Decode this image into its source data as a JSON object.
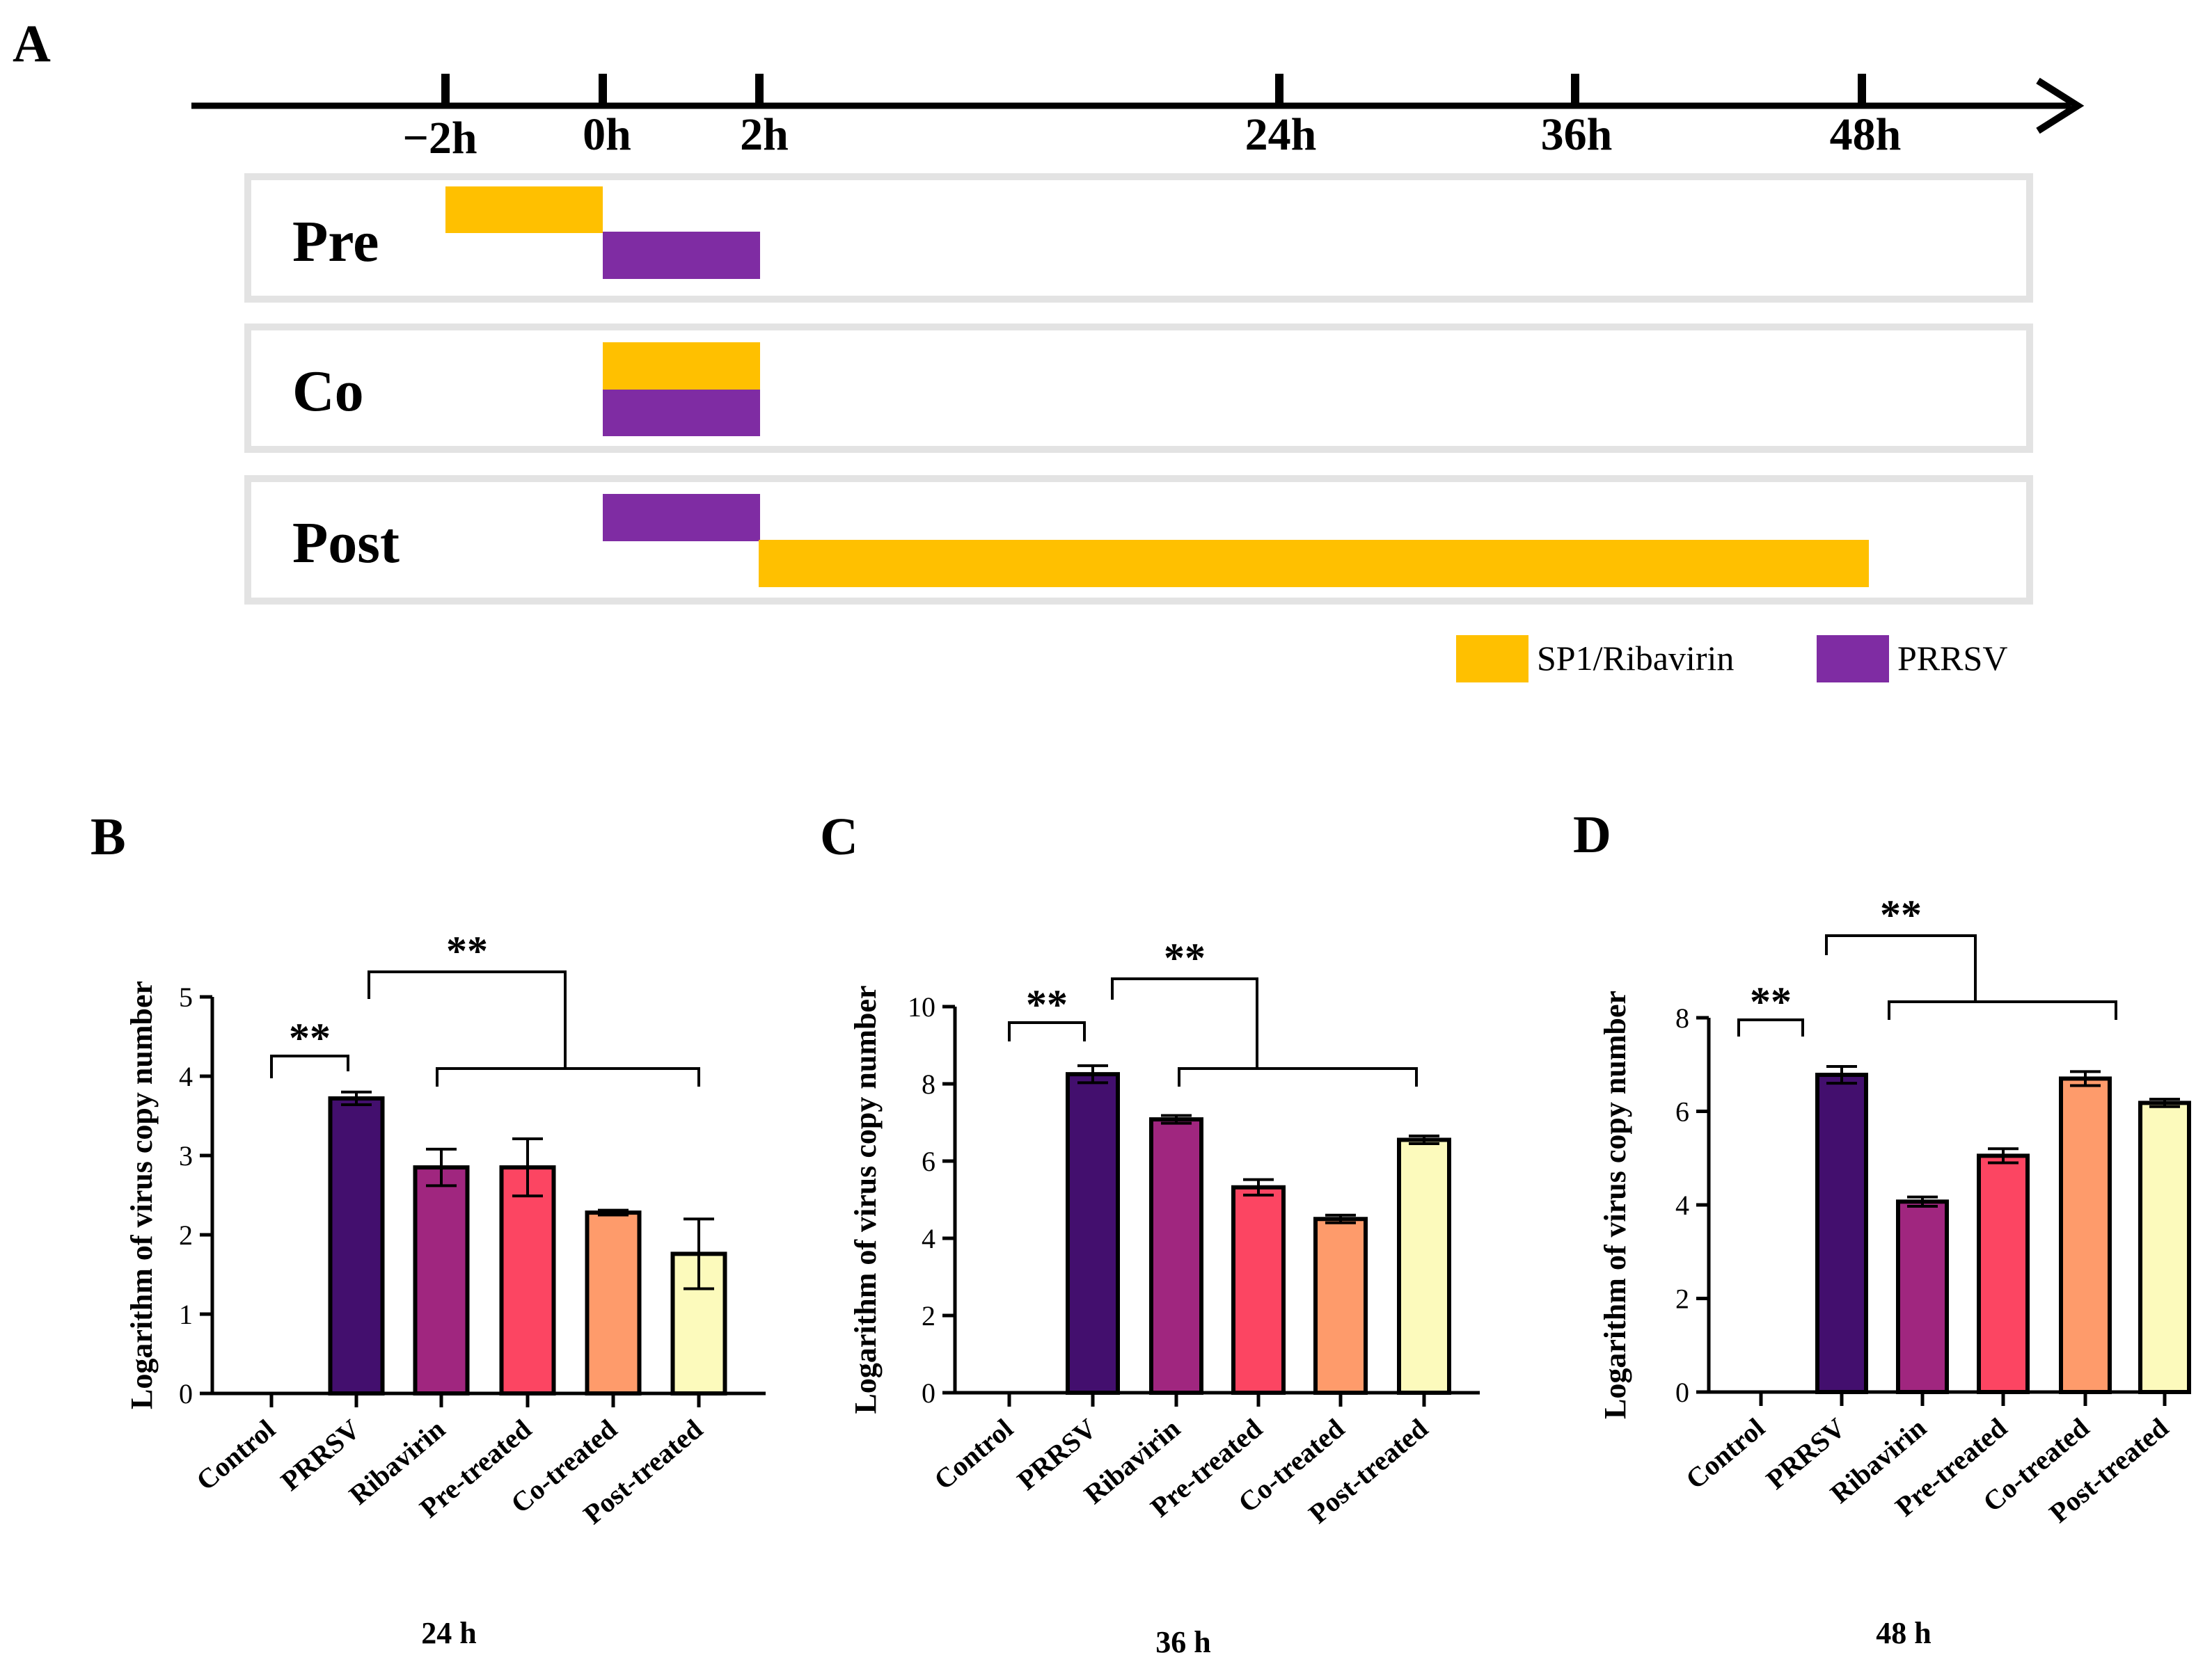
{
  "panel_a": {
    "letter": "A",
    "timeline_ticks": [
      "−2h",
      "0h",
      "2h",
      "24h",
      "36h",
      "48h"
    ],
    "rows": [
      {
        "label": "Pre",
        "bars": [
          {
            "agent": "SP1/Ribavirin",
            "from": "−2h",
            "to": "0h"
          },
          {
            "agent": "PRRSV",
            "from": "0h",
            "to": "2h"
          }
        ]
      },
      {
        "label": "Co",
        "bars": [
          {
            "agent": "SP1/Ribavirin",
            "from": "0h",
            "to": "2h"
          },
          {
            "agent": "PRRSV",
            "from": "0h",
            "to": "2h"
          }
        ]
      },
      {
        "label": "Post",
        "bars": [
          {
            "agent": "PRRSV",
            "from": "0h",
            "to": "2h"
          },
          {
            "agent": "SP1/Ribavirin",
            "from": "2h",
            "to": "48h"
          }
        ]
      }
    ],
    "legend": [
      {
        "label": "SP1/Ribavirin",
        "color": "#ffc000"
      },
      {
        "label": "PRRSV",
        "color": "#7f2ca3"
      }
    ]
  },
  "chart_data": [
    {
      "type": "bar",
      "letter": "B",
      "title": "24 h",
      "ylabel": "Logarithm of virus copy number",
      "categories": [
        "Control",
        "PRRSV",
        "Ribavirin",
        "Pre-treated",
        "Co-treated",
        "Post-treated"
      ],
      "values": [
        0,
        3.72,
        2.85,
        2.85,
        2.28,
        1.76
      ],
      "errors": [
        0,
        0.08,
        0.23,
        0.36,
        0.03,
        0.44
      ],
      "ylim": [
        0,
        5
      ],
      "yticks": [
        "0",
        "1",
        "2",
        "3",
        "4",
        "5"
      ],
      "significance": [
        "**",
        "**"
      ],
      "bar_colors": [
        "#ffffff",
        "#430f6e",
        "#a0267f",
        "#fc4562",
        "#fe9b6b",
        "#fcfabc"
      ]
    },
    {
      "type": "bar",
      "letter": "C",
      "title": "36 h",
      "ylabel": "Logarithm of virus copy number",
      "categories": [
        "Control",
        "PRRSV",
        "Ribavirin",
        "Pre-treated",
        "Co-treated",
        "Post-treated"
      ],
      "values": [
        0,
        8.25,
        7.08,
        5.32,
        4.5,
        6.55
      ],
      "errors": [
        0,
        0.22,
        0.1,
        0.2,
        0.1,
        0.1
      ],
      "ylim": [
        0,
        10
      ],
      "yticks": [
        "0",
        "2",
        "4",
        "6",
        "8",
        "10"
      ],
      "significance": [
        "**",
        "**"
      ],
      "bar_colors": [
        "#ffffff",
        "#430f6e",
        "#a0267f",
        "#fc4562",
        "#fe9b6b",
        "#fcfabc"
      ]
    },
    {
      "type": "bar",
      "letter": "D",
      "title": "48 h",
      "ylabel": "Logarithm of virus copy number",
      "categories": [
        "Control",
        "PRRSV",
        "Ribavirin",
        "Pre-treated",
        "Co-treated",
        "Post-treated"
      ],
      "values": [
        0,
        6.78,
        4.07,
        5.05,
        6.7,
        6.18
      ],
      "errors": [
        0,
        0.18,
        0.1,
        0.15,
        0.15,
        0.08
      ],
      "ylim": [
        0,
        8
      ],
      "yticks": [
        "0",
        "2",
        "4",
        "6",
        "8"
      ],
      "significance": [
        "**",
        "**"
      ],
      "bar_colors": [
        "#ffffff",
        "#430f6e",
        "#a0267f",
        "#fc4562",
        "#fe9b6b",
        "#fcfabc"
      ]
    }
  ]
}
